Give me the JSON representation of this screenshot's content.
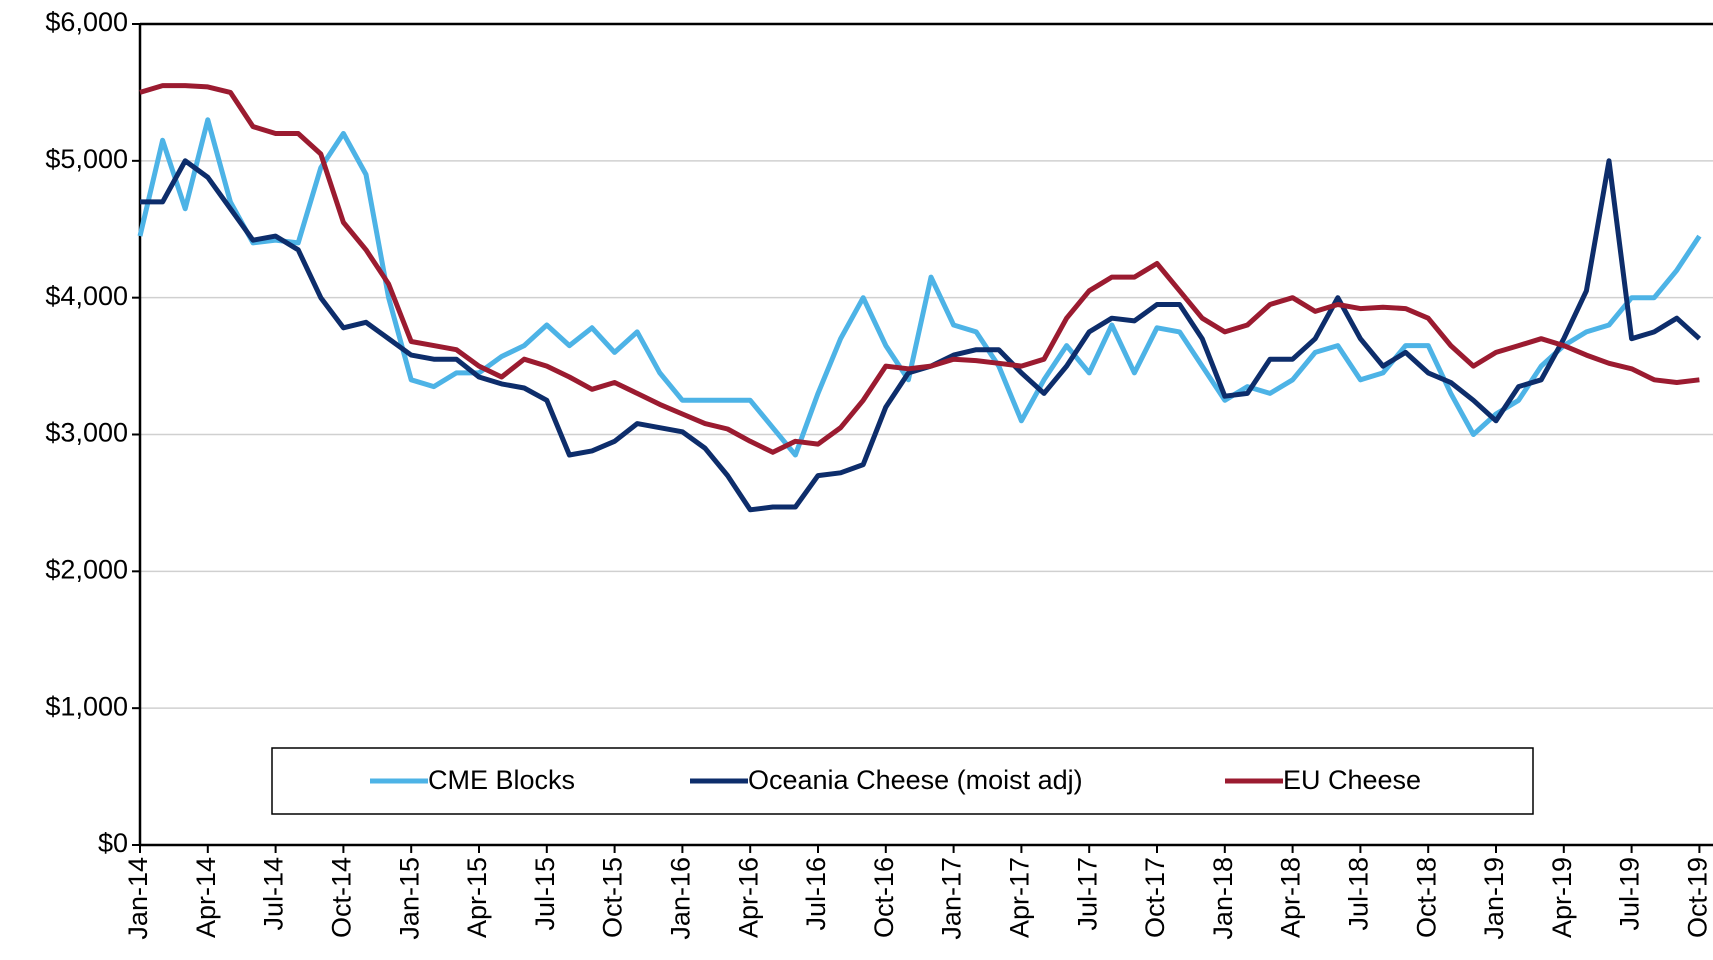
{
  "chart_data": {
    "type": "line",
    "categories": [
      "Jan-14",
      null,
      null,
      "Apr-14",
      null,
      null,
      "Jul-14",
      null,
      null,
      "Oct-14",
      null,
      null,
      "Jan-15",
      null,
      null,
      "Apr-15",
      null,
      null,
      "Jul-15",
      null,
      null,
      "Oct-15",
      null,
      null,
      "Jan-16",
      null,
      null,
      "Apr-16",
      null,
      null,
      "Jul-16",
      null,
      null,
      "Oct-16",
      null,
      null,
      "Jan-17",
      null,
      null,
      "Apr-17",
      null,
      null,
      "Jul-17",
      null,
      null,
      "Oct-17",
      null,
      null,
      "Jan-18",
      null,
      null,
      "Apr-18",
      null,
      null,
      "Jul-18",
      null,
      null,
      "Oct-18",
      null,
      null,
      "Jan-19",
      null,
      null,
      "Apr-19",
      null,
      null,
      "Jul-19",
      null,
      null,
      "Oct-19"
    ],
    "series": [
      {
        "name": "CME Blocks",
        "color": "#4db3e6",
        "values": [
          4450,
          5150,
          4650,
          5300,
          4700,
          4400,
          4420,
          4400,
          4950,
          5200,
          4900,
          4000,
          3400,
          3350,
          3450,
          3450,
          3570,
          3650,
          3800,
          3650,
          3780,
          3600,
          3750,
          3450,
          3250,
          3250,
          3250,
          3250,
          3050,
          2850,
          3300,
          3700,
          4000,
          3650,
          3400,
          4150,
          3800,
          3750,
          3500,
          3100,
          3400,
          3650,
          3450,
          3800,
          3450,
          3780,
          3750,
          3500,
          3250,
          3350,
          3300,
          3400,
          3600,
          3650,
          3400,
          3450,
          3650,
          3650,
          3300,
          3000,
          3150,
          3250,
          3500,
          3650,
          3750,
          3800,
          4000,
          4000,
          4200,
          4450
        ]
      },
      {
        "name": "Oceania Cheese (moist adj)",
        "color": "#0d2d6b",
        "values": [
          4700,
          4700,
          5000,
          4880,
          4650,
          4420,
          4450,
          4350,
          4000,
          3780,
          3820,
          3700,
          3580,
          3550,
          3550,
          3420,
          3370,
          3340,
          3250,
          2850,
          2880,
          2950,
          3080,
          3050,
          3020,
          2900,
          2700,
          2450,
          2470,
          2470,
          2700,
          2720,
          2780,
          3200,
          3450,
          3500,
          3580,
          3620,
          3620,
          3450,
          3300,
          3500,
          3750,
          3850,
          3830,
          3950,
          3950,
          3700,
          3280,
          3300,
          3550,
          3550,
          3700,
          4000,
          3700,
          3500,
          3600,
          3450,
          3380,
          3250,
          3100,
          3350,
          3400,
          3700,
          4050,
          5000,
          3700,
          3750,
          3850,
          3700
        ]
      },
      {
        "name": "EU Cheese",
        "color": "#9b1b30",
        "values": [
          5500,
          5550,
          5550,
          5540,
          5500,
          5250,
          5200,
          5200,
          5050,
          4550,
          4350,
          4100,
          3680,
          3650,
          3620,
          3500,
          3420,
          3550,
          3500,
          3420,
          3330,
          3380,
          3300,
          3220,
          3150,
          3080,
          3040,
          2950,
          2870,
          2950,
          2930,
          3050,
          3250,
          3500,
          3480,
          3500,
          3550,
          3540,
          3520,
          3500,
          3550,
          3850,
          4050,
          4150,
          4150,
          4250,
          4050,
          3850,
          3750,
          3800,
          3950,
          4000,
          3900,
          3950,
          3920,
          3930,
          3920,
          3850,
          3650,
          3500,
          3600,
          3650,
          3700,
          3650,
          3580,
          3520,
          3480,
          3400,
          3380,
          3400
        ]
      }
    ],
    "ylim": [
      0,
      6000
    ],
    "yticks": [
      {
        "value": 0,
        "label": "$0"
      },
      {
        "value": 1000,
        "label": "$1,000"
      },
      {
        "value": 2000,
        "label": "$2,000"
      },
      {
        "value": 3000,
        "label": "$3,000"
      },
      {
        "value": 4000,
        "label": "$4,000"
      },
      {
        "value": 5000,
        "label": "$5,000"
      },
      {
        "value": 6000,
        "label": "$6,000"
      }
    ],
    "grid": true,
    "legend": "bottom"
  }
}
